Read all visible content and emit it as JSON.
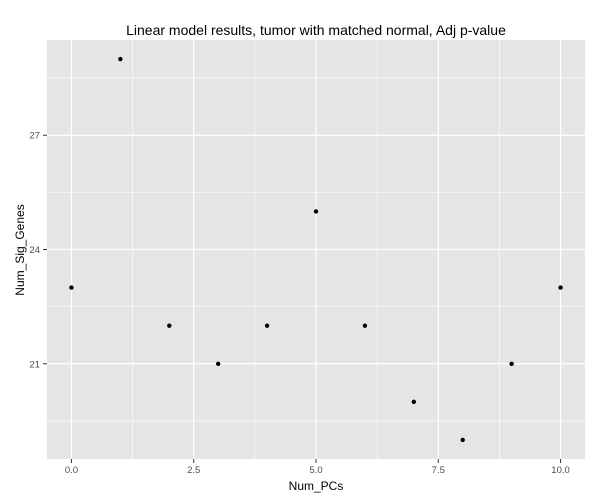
{
  "chart_data": {
    "type": "scatter",
    "title": "Linear model results, tumor with matched normal, Adj p-value",
    "xlabel": "Num_PCs",
    "ylabel": "Num_Sig_Genes",
    "x": [
      0,
      1,
      2,
      3,
      4,
      5,
      6,
      7,
      8,
      9,
      10
    ],
    "y": [
      23,
      29,
      22,
      21,
      22,
      25,
      22,
      20,
      19,
      21,
      23
    ],
    "xlim": [
      -0.5,
      10.5
    ],
    "ylim": [
      18.5,
      29.5
    ],
    "xticks": [
      0,
      2.5,
      5,
      7.5,
      10
    ],
    "xtick_labels": [
      "0.0",
      "2.5",
      "5.0",
      "7.5",
      "10.0"
    ],
    "yticks": [
      21,
      24,
      27
    ],
    "ytick_labels": [
      "21",
      "24",
      "27"
    ],
    "grid": true,
    "legend": "none",
    "colors": {
      "panel_background": "#e5e5e5",
      "grid_line": "#ffffff",
      "point": "#000000",
      "tick_label": "#4d4d4d"
    }
  }
}
